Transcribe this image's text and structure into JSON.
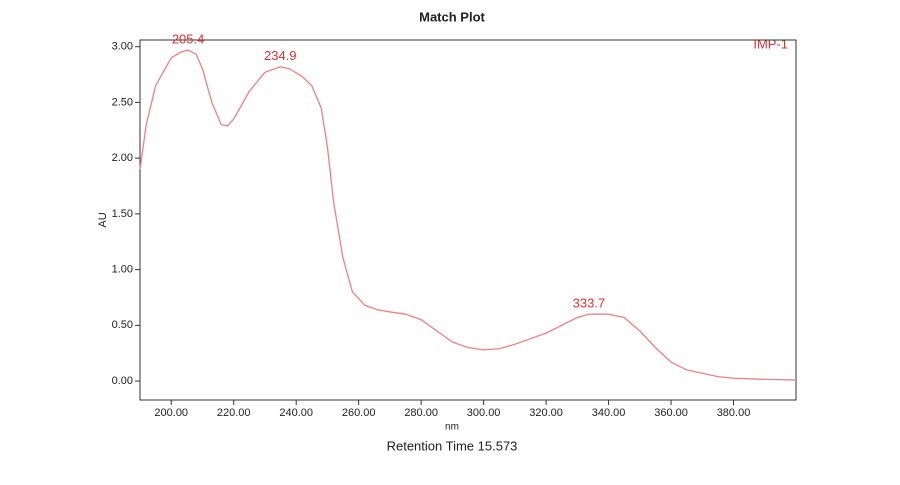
{
  "chart_data": {
    "type": "line",
    "title": "Match Plot",
    "x_label": "nm",
    "y_label": "AU",
    "footer": "Retention Time 15.573",
    "x": [
      190,
      192,
      195,
      198,
      200,
      203,
      205.4,
      208,
      210,
      213,
      216,
      218,
      220,
      225,
      230,
      234.9,
      238,
      242,
      245,
      248,
      250,
      252,
      255,
      258,
      262,
      266,
      270,
      275,
      280,
      285,
      290,
      295,
      300,
      305,
      310,
      315,
      320,
      325,
      330,
      333.7,
      340,
      345,
      350,
      355,
      360,
      365,
      370,
      375,
      380,
      390,
      400
    ],
    "series": [
      {
        "name": "IMP-1",
        "color": "#f08080",
        "values": [
          1.9,
          2.3,
          2.65,
          2.8,
          2.9,
          2.95,
          2.97,
          2.93,
          2.8,
          2.5,
          2.3,
          2.29,
          2.35,
          2.6,
          2.77,
          2.82,
          2.8,
          2.73,
          2.65,
          2.45,
          2.1,
          1.6,
          1.1,
          0.8,
          0.68,
          0.64,
          0.62,
          0.6,
          0.55,
          0.45,
          0.35,
          0.3,
          0.28,
          0.29,
          0.33,
          0.38,
          0.43,
          0.5,
          0.57,
          0.6,
          0.6,
          0.57,
          0.45,
          0.3,
          0.17,
          0.1,
          0.07,
          0.04,
          0.025,
          0.015,
          0.01
        ]
      }
    ],
    "peak_labels": [
      205.4,
      234.9,
      333.7
    ],
    "xlim": [
      190,
      400
    ],
    "ylim": [
      -0.17,
      3.06
    ],
    "xticks": [
      {
        "value": 200,
        "label": "200.00"
      },
      {
        "value": 220,
        "label": "220.00"
      },
      {
        "value": 240,
        "label": "240.00"
      },
      {
        "value": 260,
        "label": "260.00"
      },
      {
        "value": 280,
        "label": "280.00"
      },
      {
        "value": 300,
        "label": "300.00"
      },
      {
        "value": 320,
        "label": "320.00"
      },
      {
        "value": 340,
        "label": "340.00"
      },
      {
        "value": 360,
        "label": "360.00"
      },
      {
        "value": 380,
        "label": "380.00"
      }
    ],
    "yticks": [
      {
        "value": 0,
        "label": "0.00"
      },
      {
        "value": 0.5,
        "label": "0.50"
      },
      {
        "value": 1,
        "label": "1.00"
      },
      {
        "value": 1.5,
        "label": "1.50"
      },
      {
        "value": 2,
        "label": "2.00"
      },
      {
        "value": 2.5,
        "label": "2.50"
      },
      {
        "value": 3,
        "label": "3.00"
      }
    ],
    "grid": false
  }
}
